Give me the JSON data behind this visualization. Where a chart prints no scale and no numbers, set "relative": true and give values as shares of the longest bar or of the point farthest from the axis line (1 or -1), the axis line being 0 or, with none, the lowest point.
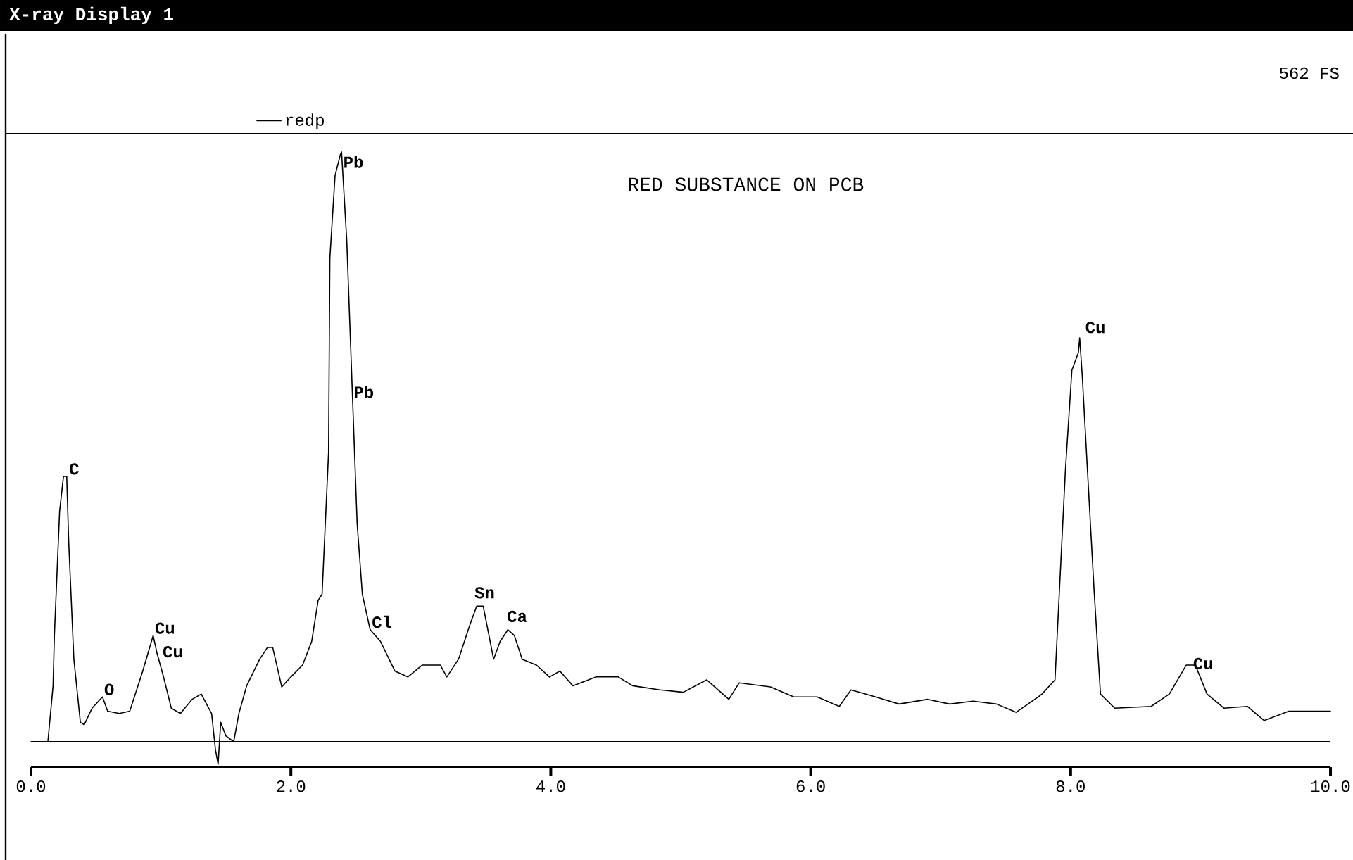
{
  "chart_data": {
    "type": "line",
    "title": "X-ray Display 1",
    "subtitle": "RED SUBSTANCE ON PCB",
    "relative": true,
    "legend": "top left",
    "xlim": [
      0,
      10
    ],
    "xticks": [
      {
        "value": 0,
        "label": "0.0"
      },
      {
        "value": 2,
        "label": "2.0"
      },
      {
        "value": 4,
        "label": "4.0"
      },
      {
        "value": 6,
        "label": "6.0"
      },
      {
        "value": 8,
        "label": "8.0"
      },
      {
        "value": 10,
        "label": "10.0"
      }
    ],
    "annotations": [
      "562 FS",
      {
        "text": "C",
        "x": 0.28,
        "y": 0.45
      },
      {
        "text": "O",
        "x": 0.55,
        "y": 0.076
      },
      {
        "text": "Cu",
        "x": 0.94,
        "y": 0.18
      },
      {
        "text": "Cu",
        "x": 1.0,
        "y": 0.14
      },
      {
        "text": "Pb",
        "x": 2.39,
        "y": 0.97
      },
      {
        "text": "Pb",
        "x": 2.47,
        "y": 0.58
      },
      {
        "text": "Cl",
        "x": 2.61,
        "y": 0.19
      },
      {
        "text": "Sn",
        "x": 3.4,
        "y": 0.24
      },
      {
        "text": "Ca",
        "x": 3.65,
        "y": 0.2
      },
      {
        "text": "Cu",
        "x": 8.1,
        "y": 0.69
      },
      {
        "text": "Cu",
        "x": 8.93,
        "y": 0.12
      }
    ],
    "series": [
      {
        "name": "redp",
        "color": "#000000",
        "x": [
          0,
          0.13,
          0.17,
          0.18,
          0.22,
          0.25,
          0.275,
          0.29,
          0.33,
          0.38,
          0.41,
          0.47,
          0.55,
          0.59,
          0.68,
          0.76,
          0.86,
          0.94,
          0.97,
          1.02,
          1.08,
          1.15,
          1.24,
          1.31,
          1.39,
          1.42,
          1.44,
          1.46,
          1.5,
          1.56,
          1.6,
          1.66,
          1.76,
          1.82,
          1.86,
          1.93,
          2.0,
          2.09,
          2.16,
          2.21,
          2.24,
          2.29,
          2.3,
          2.34,
          2.38,
          2.39,
          2.43,
          2.48,
          2.51,
          2.55,
          2.61,
          2.69,
          2.8,
          2.9,
          3.01,
          3.15,
          3.2,
          3.29,
          3.38,
          3.43,
          3.48,
          3.56,
          3.61,
          3.67,
          3.72,
          3.78,
          3.89,
          3.99,
          4.07,
          4.17,
          4.35,
          4.52,
          4.63,
          4.84,
          5.02,
          5.2,
          5.37,
          5.45,
          5.69,
          5.87,
          6.05,
          6.22,
          6.31,
          6.5,
          6.68,
          6.9,
          7.07,
          7.25,
          7.43,
          7.58,
          7.75,
          7.78,
          7.88,
          7.96,
          8.01,
          8.06,
          8.07,
          8.09,
          8.13,
          8.18,
          8.23,
          8.34,
          8.62,
          8.76,
          8.89,
          8.96,
          9.05,
          9.18,
          9.36,
          9.49,
          9.68,
          10.0
        ],
        "values": [
          0,
          0,
          0.095,
          0.18,
          0.39,
          0.45,
          0.45,
          0.34,
          0.14,
          0.033,
          0.029,
          0.057,
          0.076,
          0.052,
          0.048,
          0.052,
          0.12,
          0.18,
          0.15,
          0.11,
          0.057,
          0.048,
          0.072,
          0.081,
          0.048,
          -0.014,
          -0.038,
          0.033,
          0.01,
          0,
          0.048,
          0.095,
          0.14,
          0.16,
          0.16,
          0.093,
          0.11,
          0.13,
          0.17,
          0.24,
          0.25,
          0.49,
          0.82,
          0.96,
          0.995,
          1.0,
          0.85,
          0.55,
          0.37,
          0.25,
          0.19,
          0.17,
          0.12,
          0.11,
          0.13,
          0.13,
          0.11,
          0.14,
          0.2,
          0.23,
          0.23,
          0.14,
          0.17,
          0.19,
          0.18,
          0.14,
          0.13,
          0.11,
          0.12,
          0.095,
          0.11,
          0.11,
          0.095,
          0.088,
          0.084,
          0.105,
          0.072,
          0.1,
          0.093,
          0.076,
          0.076,
          0.06,
          0.088,
          0.076,
          0.064,
          0.072,
          0.064,
          0.069,
          0.064,
          0.05,
          0.076,
          0.081,
          0.105,
          0.46,
          0.63,
          0.66,
          0.685,
          0.62,
          0.46,
          0.26,
          0.081,
          0.057,
          0.06,
          0.081,
          0.13,
          0.13,
          0.081,
          0.057,
          0.06,
          0.036,
          0.052,
          0.052
        ]
      }
    ]
  }
}
